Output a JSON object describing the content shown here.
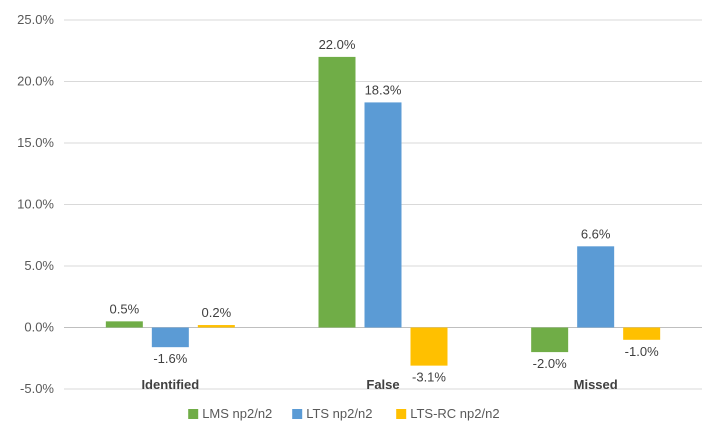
{
  "chart_data": {
    "type": "bar",
    "title": "",
    "xlabel": "",
    "ylabel": "",
    "categories": [
      "Identified",
      "False",
      "Missed"
    ],
    "series": [
      {
        "name": "LMS np2/n2",
        "color": "#70ad47",
        "values": [
          0.5,
          22.0,
          -2.0
        ]
      },
      {
        "name": "LTS np2/n2",
        "color": "#5b9bd5",
        "values": [
          -1.6,
          18.3,
          6.6
        ]
      },
      {
        "name": "LTS-RC np2/n2",
        "color": "#ffc000",
        "values": [
          0.2,
          -3.1,
          -1.0
        ]
      }
    ],
    "ylim": [
      -5,
      25
    ],
    "yticks": [
      25,
      20,
      15,
      10,
      5,
      0,
      -5
    ],
    "ytick_labels": [
      "25.0%",
      "20.0%",
      "15.0%",
      "10.0%",
      "5.0%",
      "0.0%",
      "-5.0%"
    ],
    "data_labels": [
      [
        "0.5%",
        "22.0%",
        "-2.0%"
      ],
      [
        "-1.6%",
        "18.3%",
        "6.6%"
      ],
      [
        "0.2%",
        "-3.1%",
        "-1.0%"
      ]
    ],
    "grid": true,
    "legend_position": "bottom"
  }
}
